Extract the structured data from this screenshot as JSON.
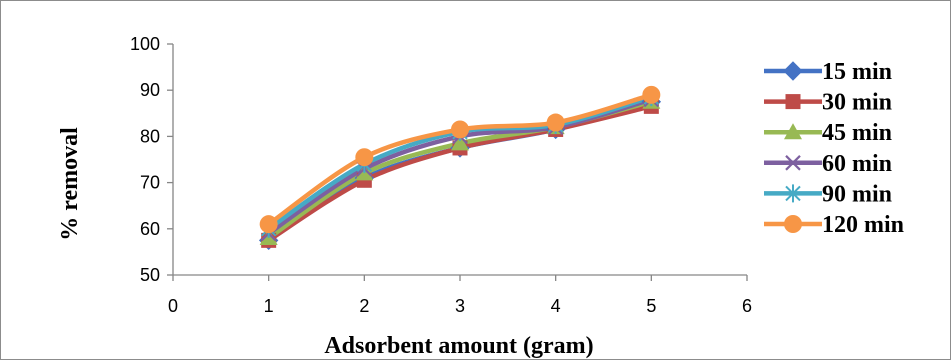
{
  "chart_data": {
    "type": "line",
    "xlabel": "Adsorbent amount (gram)",
    "ylabel": "% removal",
    "xlim": [
      0,
      6
    ],
    "ylim": [
      50,
      100
    ],
    "x_ticks": [
      "0",
      "1",
      "2",
      "3",
      "4",
      "5",
      "6"
    ],
    "y_ticks": [
      "50",
      "60",
      "70",
      "80",
      "90",
      "100"
    ],
    "grid": false,
    "smooth": true,
    "legend_position": "right",
    "x": [
      1,
      2,
      3,
      4,
      5
    ],
    "series": [
      {
        "name": "15 min",
        "color": "#4472c4",
        "marker": "diamond",
        "values": [
          57.5,
          71,
          77.5,
          81.5,
          87.5
        ]
      },
      {
        "name": "30 min",
        "color": "#be4b48",
        "marker": "square",
        "values": [
          57.5,
          70.5,
          77.5,
          81.5,
          86.5
        ]
      },
      {
        "name": "45 min",
        "color": "#98b954",
        "marker": "triangle",
        "values": [
          58,
          72,
          78.5,
          82,
          87.5
        ]
      },
      {
        "name": "60 min",
        "color": "#7d60a0",
        "marker": "x",
        "values": [
          59,
          73,
          80,
          82,
          88
        ]
      },
      {
        "name": "90 min",
        "color": "#46aac5",
        "marker": "star",
        "values": [
          60,
          74,
          81,
          82.5,
          88.5
        ]
      },
      {
        "name": "120 min",
        "color": "#f79646",
        "marker": "circle",
        "values": [
          61,
          75.5,
          81.5,
          83,
          89
        ]
      }
    ]
  }
}
